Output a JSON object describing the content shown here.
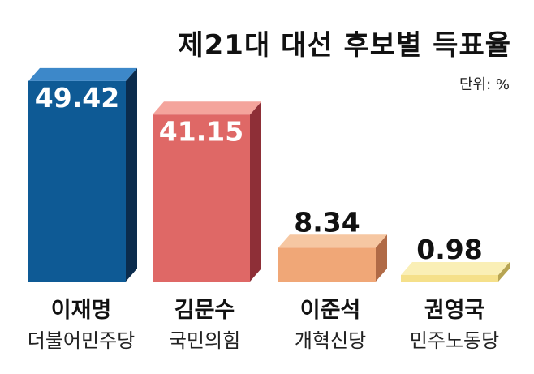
{
  "title": "제21대 대선 후보별 득표율",
  "unit_label": "단위: %",
  "colors": {
    "bar_fronts": [
      "#0e5a95",
      "#df6866",
      "#f0a777",
      "#f5e08a"
    ],
    "bar_tops": [
      "#3d88c9",
      "#f4a49c",
      "#f6c7a2",
      "#faefb6"
    ],
    "bar_sides": [
      "#0b2c4d",
      "#8e2f37",
      "#b06a46",
      "#b7a452"
    ],
    "value_text_on_bar": "#ffffff",
    "value_text_above": "#111111"
  },
  "chart_data": {
    "type": "bar",
    "categories": [
      "이재명",
      "김문수",
      "이준석",
      "권영국"
    ],
    "parties": [
      "더불어민주당",
      "국민의힘",
      "개혁신당",
      "민주노동당"
    ],
    "values": [
      49.42,
      41.15,
      8.34,
      0.98
    ],
    "value_labels": [
      "49.42",
      "41.15",
      "8.34",
      "0.98"
    ],
    "title": "제21대 대선 후보별 득표율",
    "ylabel": "",
    "unit": "%",
    "ylim": [
      0,
      50
    ],
    "grid": false,
    "legend": "none",
    "style": "3d"
  }
}
